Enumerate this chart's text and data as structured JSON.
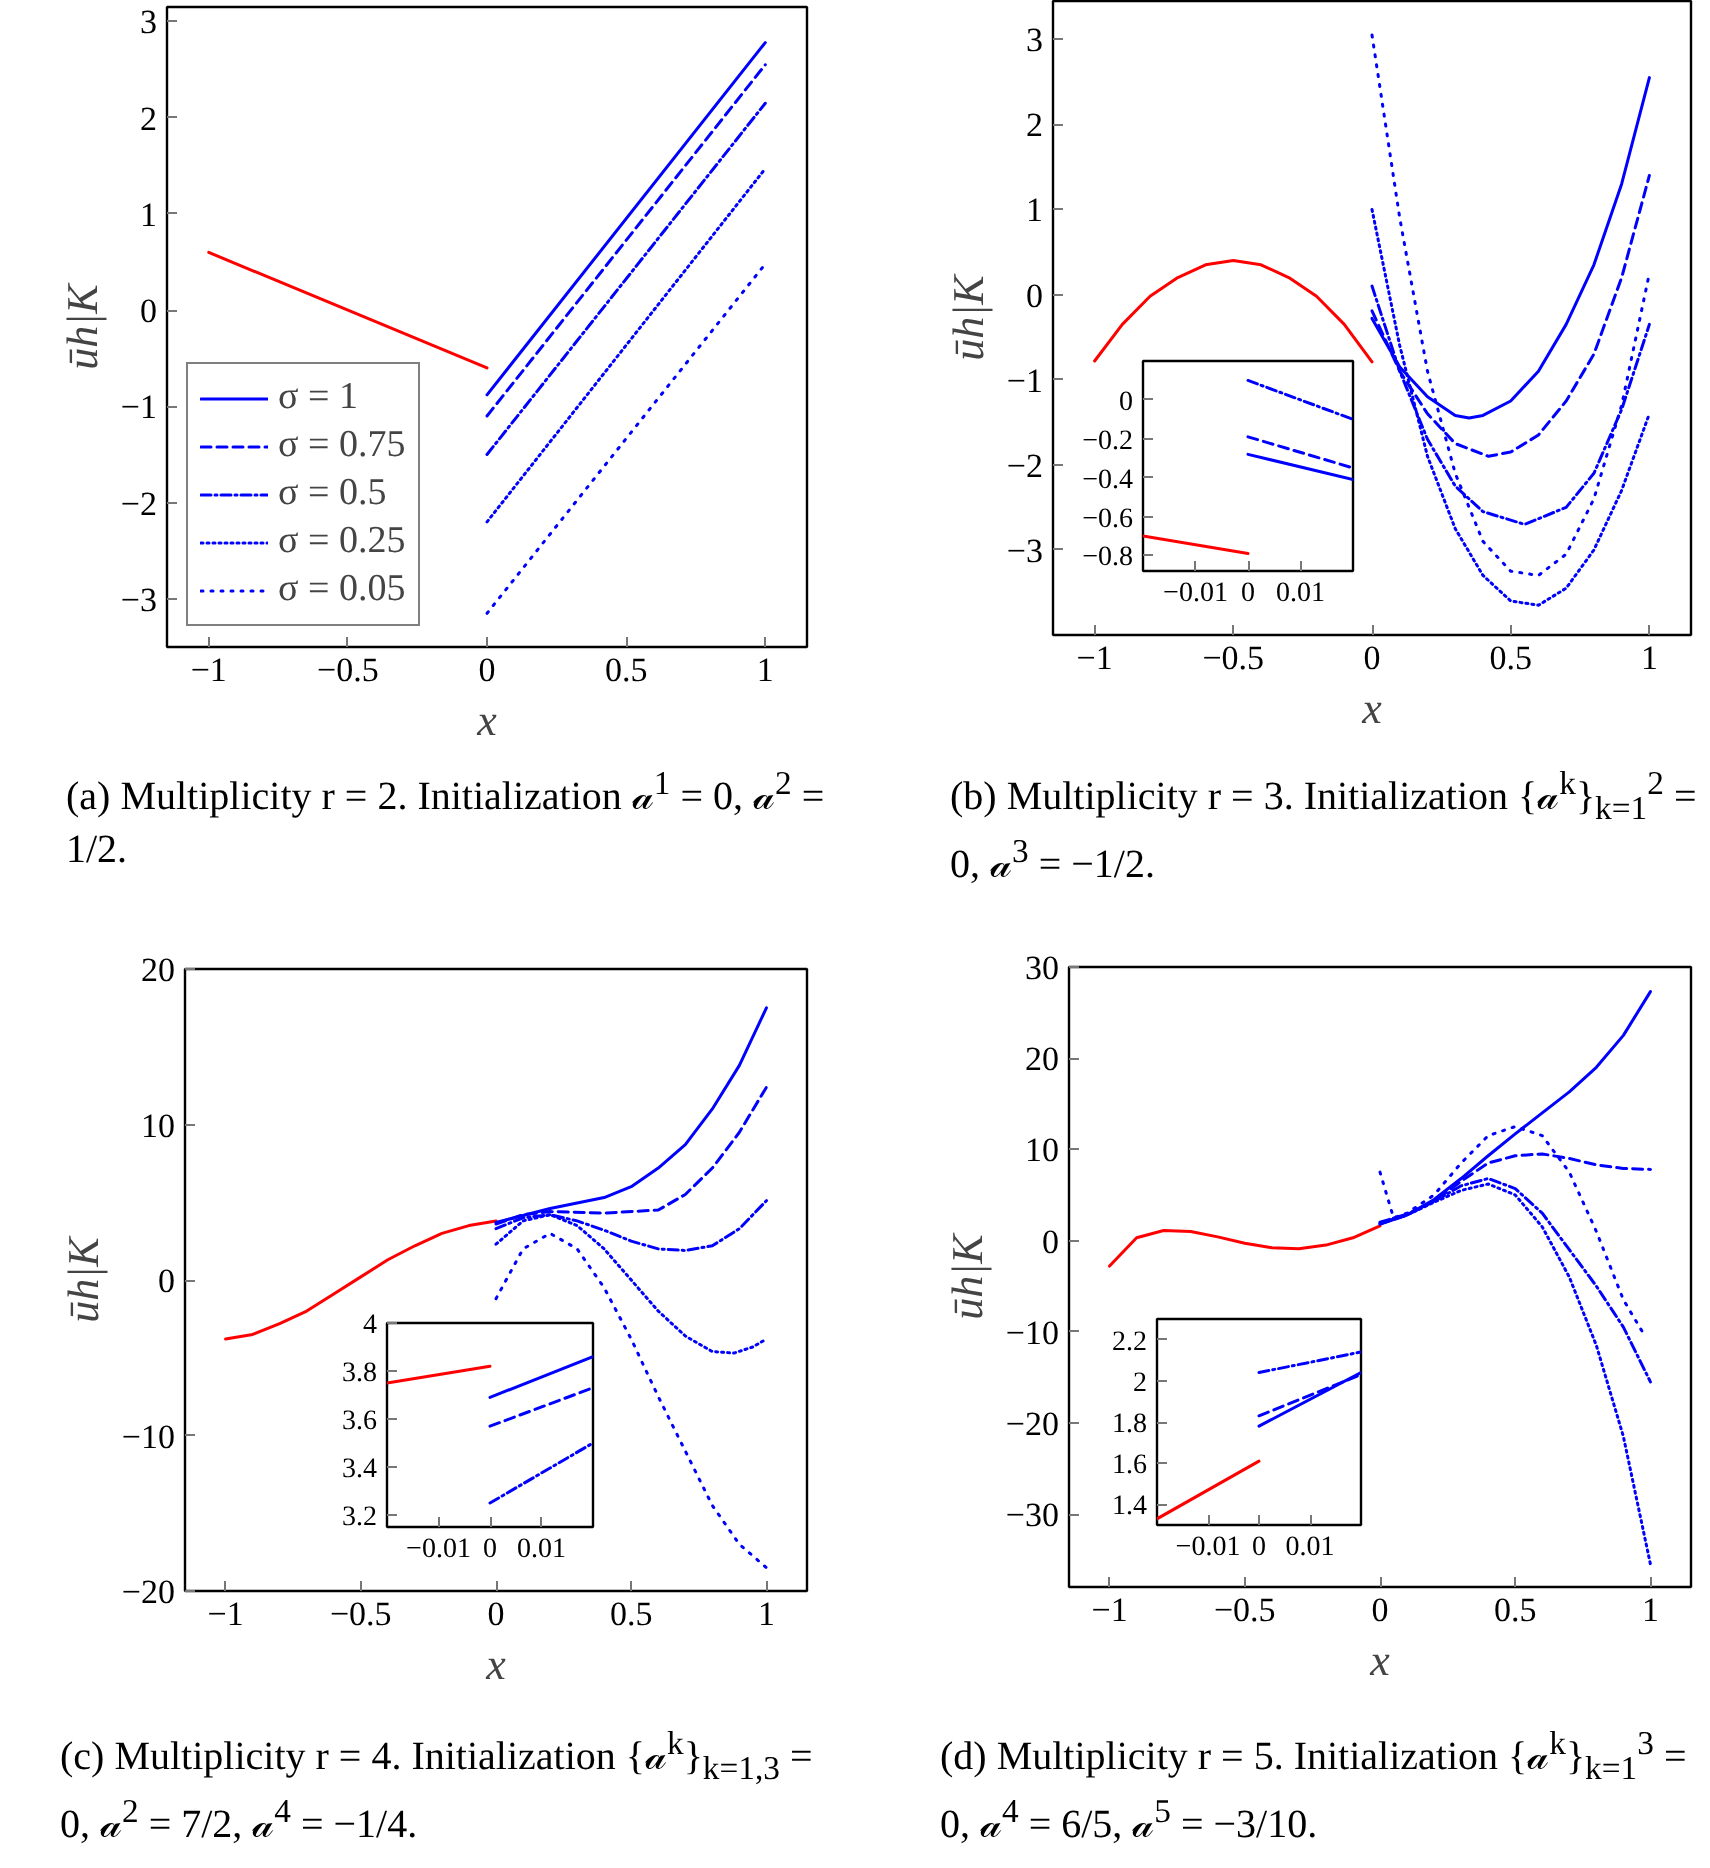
{
  "chart_data": [
    {
      "type": "line",
      "xlabel": "x",
      "ylabel": "ūh|K",
      "xlim": [
        -1.15,
        1.15
      ],
      "ylim": [
        -3.5,
        3.15
      ],
      "xticks": [
        -1,
        -0.5,
        0,
        0.5,
        1
      ],
      "yticks": [
        -3,
        -2,
        -1,
        0,
        1,
        2,
        3
      ],
      "legend": "bottom left",
      "annotations": [
        "(a) Multiplicity r = 2. Initialization 𝒶$^{1}$ = 0, 𝒶$^{2}$ = 1/2."
      ],
      "series": [
        {
          "color": "#ff0000",
          "line_style": "solid",
          "x": [
            -1,
            0
          ],
          "values": [
            0.6,
            -0.6
          ]
        },
        {
          "name": "σ = 1",
          "color": "#0000ff",
          "line_style": "solid",
          "x": [
            0,
            1
          ],
          "values": [
            -0.88,
            2.78
          ]
        },
        {
          "name": "σ = 0.75",
          "color": "#0000ff",
          "line_style": "dashed",
          "x": [
            0,
            1
          ],
          "values": [
            -1.1,
            2.55
          ]
        },
        {
          "name": "σ = 0.5",
          "color": "#0000ff",
          "line_style": "dashdot",
          "x": [
            0,
            1
          ],
          "values": [
            -1.5,
            2.15
          ]
        },
        {
          "name": "σ = 0.25",
          "color": "#0000ff",
          "line_style": "densely dotted",
          "x": [
            0,
            1
          ],
          "values": [
            -2.2,
            1.47
          ]
        },
        {
          "name": "σ = 0.05",
          "color": "#0000ff",
          "line_style": "dotted",
          "x": [
            0,
            1
          ],
          "values": [
            -3.15,
            0.48
          ]
        }
      ]
    },
    {
      "type": "line",
      "xlabel": "x",
      "ylabel": "ūh|K",
      "xlim": [
        -1.15,
        1.15
      ],
      "ylim": [
        -4,
        3.45
      ],
      "xticks": [
        -1,
        -0.5,
        0,
        0.5,
        1
      ],
      "yticks": [
        -3,
        -2,
        -1,
        0,
        1,
        2,
        3
      ],
      "annotations": [
        "(b) Multiplicity r = 3. Initialization {𝒶$^{k}$}$_{k=1}$$^{2}$ = 0, 𝒶$^{3}$ = −1/2."
      ],
      "series": [
        {
          "color": "#ff0000",
          "line_style": "solid",
          "x": [
            -1,
            -0.9,
            -0.8,
            -0.7,
            -0.6,
            -0.5,
            -0.4,
            -0.3,
            -0.2,
            -0.1,
            0
          ],
          "values": [
            -0.78,
            -0.35,
            -0.02,
            0.2,
            0.35,
            0.4,
            0.35,
            0.2,
            -0.02,
            -0.35,
            -0.79
          ]
        },
        {
          "color": "#0000ff",
          "line_style": "solid",
          "x": [
            0,
            0.1,
            0.2,
            0.3,
            0.35,
            0.4,
            0.5,
            0.6,
            0.7,
            0.8,
            0.9,
            1
          ],
          "values": [
            -0.28,
            -0.85,
            -1.2,
            -1.42,
            -1.45,
            -1.42,
            -1.25,
            -0.9,
            -0.35,
            0.35,
            1.3,
            2.55
          ]
        },
        {
          "color": "#0000ff",
          "line_style": "dashed",
          "x": [
            0,
            0.1,
            0.2,
            0.3,
            0.42,
            0.5,
            0.6,
            0.7,
            0.8,
            0.9,
            1
          ],
          "values": [
            -0.19,
            -0.9,
            -1.4,
            -1.75,
            -1.9,
            -1.85,
            -1.65,
            -1.25,
            -0.7,
            0.2,
            1.4
          ]
        },
        {
          "color": "#0000ff",
          "line_style": "dashdot",
          "x": [
            0,
            0.1,
            0.2,
            0.3,
            0.4,
            0.55,
            0.7,
            0.8,
            0.9,
            1
          ],
          "values": [
            0.1,
            -0.9,
            -1.7,
            -2.25,
            -2.55,
            -2.7,
            -2.5,
            -2.1,
            -1.35,
            -0.35
          ]
        },
        {
          "color": "#0000ff",
          "line_style": "densely dotted",
          "x": [
            0,
            0.1,
            0.2,
            0.3,
            0.4,
            0.5,
            0.6,
            0.7,
            0.8,
            0.9,
            1
          ],
          "values": [
            1.0,
            -0.6,
            -1.9,
            -2.75,
            -3.3,
            -3.6,
            -3.65,
            -3.45,
            -3.0,
            -2.3,
            -1.4
          ]
        },
        {
          "color": "#0000ff",
          "line_style": "dotted",
          "x": [
            0,
            0.1,
            0.2,
            0.3,
            0.4,
            0.5,
            0.6,
            0.7,
            0.8,
            0.9,
            1
          ],
          "values": [
            3.05,
            0.9,
            -0.9,
            -2.1,
            -2.9,
            -3.25,
            -3.3,
            -3.05,
            -2.4,
            -1.3,
            0.25
          ]
        }
      ]
    },
    {
      "type": "line",
      "xlim": [
        -0.02,
        0.02
      ],
      "ylim": [
        -0.88,
        0.2
      ],
      "xticks": [
        -0.01,
        0,
        0.01
      ],
      "yticks": [
        -0.8,
        -0.6,
        -0.4,
        -0.2,
        0
      ],
      "series": [
        {
          "color": "#ff0000",
          "line_style": "solid",
          "x": [
            -0.02,
            0
          ],
          "values": [
            -0.7,
            -0.79
          ]
        },
        {
          "color": "#0000ff",
          "line_style": "solid",
          "x": [
            0,
            0.02
          ],
          "values": [
            -0.28,
            -0.41
          ]
        },
        {
          "color": "#0000ff",
          "line_style": "dashed",
          "x": [
            0,
            0.02
          ],
          "values": [
            -0.19,
            -0.35
          ]
        },
        {
          "color": "#0000ff",
          "line_style": "dashdot",
          "x": [
            0,
            0.02
          ],
          "values": [
            0.1,
            -0.1
          ]
        }
      ]
    },
    {
      "type": "line",
      "xlabel": "x",
      "ylabel": "ūh|K",
      "xlim": [
        -1.15,
        1.15
      ],
      "ylim": [
        -20,
        20
      ],
      "xticks": [
        -1,
        -0.5,
        0,
        0.5,
        1
      ],
      "yticks": [
        -20,
        -10,
        0,
        10,
        20
      ],
      "annotations": [
        "(c) Multiplicity r = 4. Initialization {𝒶$^{k}$}$_{k=1,3}$ = 0, 𝒶$^{2}$ = 7/2, 𝒶$^{4}$ = −1/4."
      ],
      "series": [
        {
          "color": "#ff0000",
          "line_style": "solid",
          "x": [
            -1,
            -0.9,
            -0.8,
            -0.7,
            -0.6,
            -0.5,
            -0.4,
            -0.3,
            -0.2,
            -0.1,
            0
          ],
          "values": [
            -3.8,
            -3.5,
            -2.8,
            -2.0,
            -0.9,
            0.2,
            1.3,
            2.2,
            3.0,
            3.5,
            3.8
          ]
        },
        {
          "color": "#0000ff",
          "line_style": "solid",
          "x": [
            0,
            0.2,
            0.4,
            0.5,
            0.6,
            0.7,
            0.8,
            0.9,
            1
          ],
          "values": [
            3.7,
            4.6,
            5.3,
            6.0,
            7.2,
            8.7,
            11,
            13.8,
            17.5
          ]
        },
        {
          "color": "#0000ff",
          "line_style": "dashed",
          "x": [
            0,
            0.1,
            0.2,
            0.4,
            0.6,
            0.7,
            0.8,
            0.9,
            1
          ],
          "values": [
            3.6,
            4.2,
            4.4,
            4.3,
            4.5,
            5.5,
            7.2,
            9.5,
            12.4
          ]
        },
        {
          "color": "#0000ff",
          "line_style": "dashdot",
          "x": [
            0,
            0.1,
            0.2,
            0.3,
            0.4,
            0.5,
            0.6,
            0.7,
            0.8,
            0.9,
            1
          ],
          "values": [
            3.3,
            4.0,
            4.2,
            3.8,
            3.2,
            2.5,
            2.0,
            1.9,
            2.2,
            3.3,
            5.1
          ]
        },
        {
          "color": "#0000ff",
          "line_style": "densely dotted",
          "x": [
            0,
            0.1,
            0.2,
            0.3,
            0.4,
            0.5,
            0.6,
            0.7,
            0.8,
            0.88,
            0.95,
            1
          ],
          "values": [
            2.3,
            3.8,
            4.2,
            3.5,
            2.0,
            0.0,
            -2.0,
            -3.6,
            -4.6,
            -4.7,
            -4.3,
            -3.8
          ]
        },
        {
          "color": "#0000ff",
          "line_style": "dotted",
          "x": [
            0,
            0.1,
            0.2,
            0.3,
            0.4,
            0.5,
            0.6,
            0.7,
            0.8,
            0.9,
            1
          ],
          "values": [
            -1.2,
            2.0,
            3.0,
            2.0,
            -0.5,
            -3.8,
            -7.5,
            -11,
            -14.5,
            -17,
            -18.5
          ]
        }
      ]
    },
    {
      "type": "line",
      "xlim": [
        -0.02,
        0.02
      ],
      "ylim": [
        3.15,
        4
      ],
      "xticks": [
        -0.01,
        0,
        0.01
      ],
      "yticks": [
        3.2,
        3.4,
        3.6,
        3.8,
        4
      ],
      "series": [
        {
          "color": "#ff0000",
          "line_style": "solid",
          "x": [
            -0.02,
            0
          ],
          "values": [
            3.75,
            3.82
          ]
        },
        {
          "color": "#0000ff",
          "line_style": "solid",
          "x": [
            0,
            0.02
          ],
          "values": [
            3.69,
            3.86
          ]
        },
        {
          "color": "#0000ff",
          "line_style": "dashed",
          "x": [
            0,
            0.02
          ],
          "values": [
            3.57,
            3.73
          ]
        },
        {
          "color": "#0000ff",
          "line_style": "dashdot",
          "x": [
            0,
            0.02
          ],
          "values": [
            3.25,
            3.5
          ]
        }
      ]
    },
    {
      "type": "line",
      "xlabel": "x",
      "ylabel": "ūh|K",
      "xlim": [
        -1.15,
        1.15
      ],
      "ylim": [
        -38,
        30
      ],
      "xticks": [
        -1,
        -0.5,
        0,
        0.5,
        1
      ],
      "yticks": [
        -30,
        -20,
        -10,
        0,
        10,
        20,
        30
      ],
      "annotations": [
        "(d) Multiplicity r = 5. Initialization {𝒶$^{k}$}$_{k=1}$$^{3}$ = 0, 𝒶$^{4}$ = 6/5, 𝒶$^{5}$ = −3/10."
      ],
      "series": [
        {
          "color": "#ff0000",
          "line_style": "solid",
          "x": [
            -1,
            -0.9,
            -0.8,
            -0.7,
            -0.6,
            -0.5,
            -0.4,
            -0.3,
            -0.2,
            -0.1,
            0
          ],
          "values": [
            -2.8,
            0.3,
            1.1,
            1.0,
            0.4,
            -0.3,
            -0.8,
            -0.9,
            -0.5,
            0.3,
            1.6
          ]
        },
        {
          "color": "#0000ff",
          "line_style": "solid",
          "x": [
            0,
            0.1,
            0.2,
            0.3,
            0.4,
            0.5,
            0.6,
            0.7,
            0.8,
            0.9,
            1
          ],
          "values": [
            1.8,
            2.8,
            4.5,
            6.8,
            9.3,
            11.7,
            14.0,
            16.3,
            19.0,
            22.5,
            27.3
          ]
        },
        {
          "color": "#0000ff",
          "line_style": "dashed",
          "x": [
            0,
            0.1,
            0.2,
            0.3,
            0.4,
            0.5,
            0.6,
            0.7,
            0.8,
            0.9,
            1
          ],
          "values": [
            1.8,
            2.8,
            4.3,
            6.5,
            8.5,
            9.3,
            9.5,
            9.0,
            8.3,
            7.9,
            7.8
          ]
        },
        {
          "color": "#0000ff",
          "line_style": "dashdot",
          "x": [
            0,
            0.1,
            0.2,
            0.3,
            0.4,
            0.5,
            0.6,
            0.7,
            0.8,
            0.9,
            1
          ],
          "values": [
            2.0,
            2.9,
            4.3,
            6.0,
            6.8,
            5.7,
            3.0,
            -1.0,
            -5.0,
            -9.5,
            -15.5
          ]
        },
        {
          "color": "#0000ff",
          "line_style": "densely dotted",
          "x": [
            0,
            0.1,
            0.2,
            0.3,
            0.4,
            0.5,
            0.6,
            0.7,
            0.8,
            0.9,
            1
          ],
          "values": [
            1.9,
            2.8,
            4.2,
            5.5,
            6.2,
            5.0,
            1.5,
            -4,
            -11.5,
            -21.5,
            -35.5
          ]
        },
        {
          "color": "#0000ff",
          "line_style": "dotted",
          "x": [
            0,
            0.05,
            0.1,
            0.2,
            0.3,
            0.4,
            0.5,
            0.6,
            0.7,
            0.8,
            0.9,
            0.97
          ],
          "values": [
            7.5,
            2.5,
            3.0,
            5.0,
            8.5,
            11.5,
            12.5,
            11.5,
            7.5,
            1.0,
            -6.5,
            -10
          ]
        }
      ]
    },
    {
      "type": "line",
      "xlim": [
        -0.02,
        0.02
      ],
      "ylim": [
        1.3,
        2.3
      ],
      "xticks": [
        -0.01,
        0,
        0.01
      ],
      "yticks": [
        1.4,
        1.6,
        1.8,
        2,
        2.2
      ],
      "series": [
        {
          "color": "#ff0000",
          "line_style": "solid",
          "x": [
            -0.02,
            0
          ],
          "values": [
            1.33,
            1.61
          ]
        },
        {
          "color": "#0000ff",
          "line_style": "solid",
          "x": [
            0,
            0.02
          ],
          "values": [
            1.78,
            2.04
          ]
        },
        {
          "color": "#0000ff",
          "line_style": "dashed",
          "x": [
            0,
            0.02
          ],
          "values": [
            1.83,
            2.03
          ]
        },
        {
          "color": "#0000ff",
          "line_style": "dashdot",
          "x": [
            0,
            0.02
          ],
          "values": [
            2.04,
            2.14
          ]
        }
      ]
    }
  ]
}
